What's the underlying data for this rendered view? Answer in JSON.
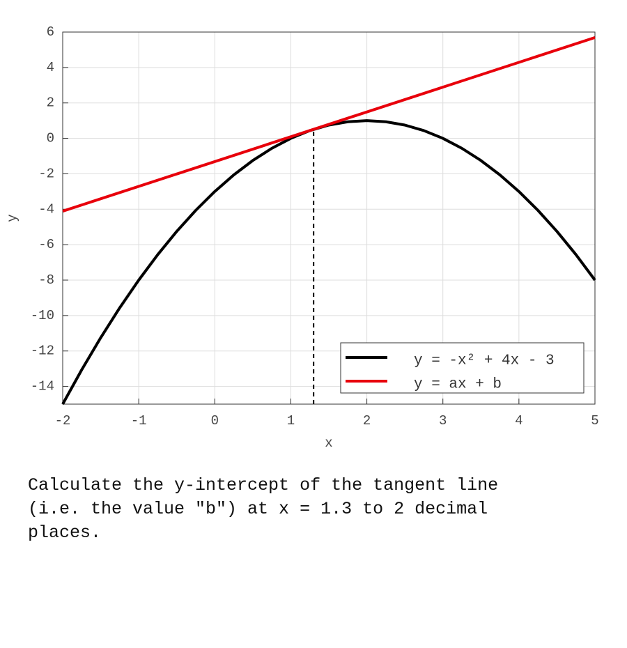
{
  "chart_data": {
    "type": "line",
    "xlabel": "x",
    "ylabel": "y",
    "xlim": [
      -2,
      5
    ],
    "ylim": [
      -15,
      6
    ],
    "xticks": [
      -2,
      -1,
      0,
      1,
      2,
      3,
      4,
      5
    ],
    "yticks": [
      -14,
      -12,
      -10,
      -8,
      -6,
      -4,
      -2,
      0,
      2,
      4,
      6
    ],
    "grid": true,
    "legend": "lower right",
    "series": [
      {
        "name": "y = -x² + 4x - 3",
        "color": "#000000",
        "x": [
          -2,
          -1.75,
          -1.5,
          -1.25,
          -1,
          -0.75,
          -0.5,
          -0.25,
          0,
          0.25,
          0.5,
          0.75,
          1,
          1.25,
          1.5,
          1.75,
          2,
          2.25,
          2.5,
          2.75,
          3,
          3.25,
          3.5,
          3.75,
          4,
          4.25,
          4.5,
          4.75,
          5
        ],
        "values": [
          -15,
          -13.0625,
          -11.25,
          -9.5625,
          -8,
          -6.5625,
          -5.25,
          -4.0625,
          -3,
          -2.0625,
          -1.25,
          -0.5625,
          0,
          0.4375,
          0.75,
          0.9375,
          1,
          0.9375,
          0.75,
          0.4375,
          0,
          -0.5625,
          -1.25,
          -2.0625,
          -3,
          -4.0625,
          -5.25,
          -6.5625,
          -8
        ]
      },
      {
        "name": "y = ax + b",
        "color": "#e8000b",
        "x": [
          -2,
          5
        ],
        "values": [
          -4.11,
          5.69
        ]
      }
    ],
    "vline": {
      "x": 1.3,
      "y": 0.51,
      "color": "#000000"
    }
  },
  "question": "Calculate the y-intercept of the tangent line (i.e. the value \"b\") at x = 1.3 to 2 decimal places."
}
